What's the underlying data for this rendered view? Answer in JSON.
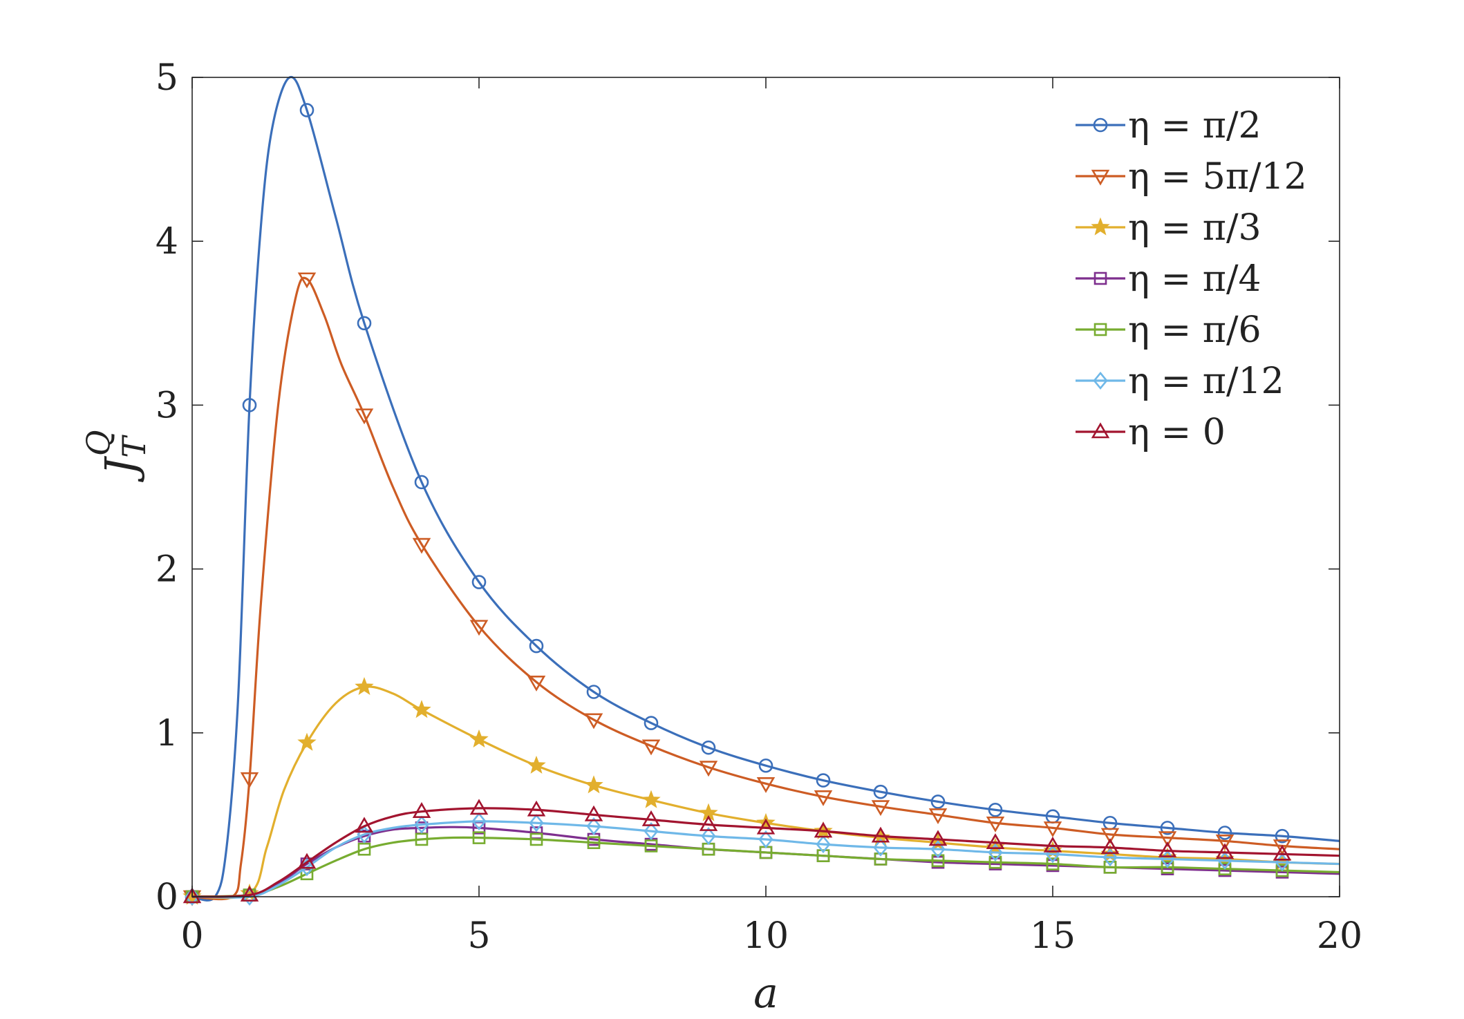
{
  "chart_data": {
    "type": "line",
    "xlabel": "a",
    "ylabel": "J_T^Q",
    "xlim": [
      0,
      20
    ],
    "ylim": [
      0,
      5
    ],
    "xticks": [
      0,
      5,
      10,
      15,
      20
    ],
    "yticks": [
      0,
      1,
      2,
      3,
      4,
      5
    ],
    "grid": false,
    "legend_position": "top-right",
    "x": [
      0,
      1,
      2,
      3,
      4,
      5,
      6,
      7,
      8,
      9,
      10,
      11,
      12,
      13,
      14,
      15,
      16,
      17,
      18,
      19
    ],
    "series": [
      {
        "name": "η = π/2",
        "color": "#3B6FBA",
        "marker": "circle",
        "values": [
          0,
          3.0,
          4.8,
          3.5,
          2.53,
          1.92,
          1.53,
          1.25,
          1.06,
          0.91,
          0.8,
          0.71,
          0.64,
          0.58,
          0.53,
          0.49,
          0.45,
          0.42,
          0.39,
          0.37
        ],
        "curve": [
          [
            0,
            0
          ],
          [
            0.4,
            0
          ],
          [
            0.6,
            0.3
          ],
          [
            0.8,
            1.2
          ],
          [
            1.0,
            3.0
          ],
          [
            1.2,
            4.1
          ],
          [
            1.4,
            4.7
          ],
          [
            1.7,
            5.0
          ],
          [
            2.0,
            4.8
          ],
          [
            2.5,
            4.15
          ],
          [
            3.0,
            3.5
          ],
          [
            4.0,
            2.53
          ],
          [
            5.0,
            1.92
          ],
          [
            6.0,
            1.53
          ],
          [
            7.0,
            1.25
          ],
          [
            8.0,
            1.06
          ],
          [
            9.0,
            0.91
          ],
          [
            10.0,
            0.8
          ],
          [
            11.0,
            0.71
          ],
          [
            12.0,
            0.64
          ],
          [
            13.0,
            0.58
          ],
          [
            14.0,
            0.53
          ],
          [
            15.0,
            0.49
          ],
          [
            16.0,
            0.45
          ],
          [
            17.0,
            0.42
          ],
          [
            18.0,
            0.39
          ],
          [
            19.0,
            0.37
          ],
          [
            20.0,
            0.34
          ]
        ]
      },
      {
        "name": "η = 5π/12",
        "color": "#CD5C24",
        "marker": "triangle-down",
        "values": [
          0,
          0.72,
          3.77,
          2.94,
          2.15,
          1.65,
          1.31,
          1.08,
          0.92,
          0.79,
          0.69,
          0.61,
          0.55,
          0.5,
          0.45,
          0.42,
          0.38,
          0.36,
          0.34,
          0.31
        ],
        "curve": [
          [
            0,
            0
          ],
          [
            0.7,
            0
          ],
          [
            0.85,
            0.2
          ],
          [
            1.0,
            0.72
          ],
          [
            1.2,
            1.8
          ],
          [
            1.5,
            3.0
          ],
          [
            1.8,
            3.65
          ],
          [
            2.0,
            3.77
          ],
          [
            2.3,
            3.55
          ],
          [
            2.6,
            3.25
          ],
          [
            3.0,
            2.94
          ],
          [
            3.5,
            2.5
          ],
          [
            4.0,
            2.15
          ],
          [
            5.0,
            1.65
          ],
          [
            6.0,
            1.31
          ],
          [
            7.0,
            1.08
          ],
          [
            8.0,
            0.92
          ],
          [
            9.0,
            0.79
          ],
          [
            10.0,
            0.69
          ],
          [
            11.0,
            0.61
          ],
          [
            12.0,
            0.55
          ],
          [
            13.0,
            0.5
          ],
          [
            14.0,
            0.45
          ],
          [
            15.0,
            0.42
          ],
          [
            16.0,
            0.38
          ],
          [
            17.0,
            0.36
          ],
          [
            18.0,
            0.34
          ],
          [
            19.0,
            0.31
          ],
          [
            20.0,
            0.29
          ]
        ]
      },
      {
        "name": "η = π/3",
        "color": "#E2AF2D",
        "marker": "star",
        "values": [
          0,
          0.02,
          0.94,
          1.28,
          1.14,
          0.96,
          0.8,
          0.68,
          0.59,
          0.51,
          0.45,
          0.4,
          0.36,
          0.33,
          0.3,
          0.28,
          0.26,
          0.24,
          0.23,
          0.21
        ],
        "curve": [
          [
            0,
            0
          ],
          [
            1.0,
            0.02
          ],
          [
            1.3,
            0.3
          ],
          [
            1.6,
            0.65
          ],
          [
            2.0,
            0.94
          ],
          [
            2.5,
            1.18
          ],
          [
            3.0,
            1.28
          ],
          [
            3.5,
            1.24
          ],
          [
            4.0,
            1.14
          ],
          [
            5.0,
            0.96
          ],
          [
            6.0,
            0.8
          ],
          [
            7.0,
            0.68
          ],
          [
            8.0,
            0.59
          ],
          [
            9.0,
            0.51
          ],
          [
            10.0,
            0.45
          ],
          [
            11.0,
            0.4
          ],
          [
            12.0,
            0.36
          ],
          [
            13.0,
            0.33
          ],
          [
            14.0,
            0.3
          ],
          [
            15.0,
            0.28
          ],
          [
            16.0,
            0.26
          ],
          [
            17.0,
            0.24
          ],
          [
            18.0,
            0.23
          ],
          [
            19.0,
            0.21
          ],
          [
            20.0,
            0.2
          ]
        ]
      },
      {
        "name": "η = π/4",
        "color": "#7E2F8E",
        "marker": "square",
        "values": [
          0,
          0.01,
          0.2,
          0.37,
          0.42,
          0.42,
          0.39,
          0.35,
          0.32,
          0.29,
          0.27,
          0.25,
          0.23,
          0.21,
          0.2,
          0.19,
          0.18,
          0.17,
          0.16,
          0.15
        ],
        "curve": [
          [
            0,
            0
          ],
          [
            1.0,
            0.01
          ],
          [
            1.5,
            0.08
          ],
          [
            2.0,
            0.2
          ],
          [
            2.5,
            0.3
          ],
          [
            3.0,
            0.37
          ],
          [
            3.5,
            0.41
          ],
          [
            4.0,
            0.42
          ],
          [
            4.5,
            0.425
          ],
          [
            5.0,
            0.42
          ],
          [
            6.0,
            0.39
          ],
          [
            7.0,
            0.35
          ],
          [
            8.0,
            0.32
          ],
          [
            9.0,
            0.29
          ],
          [
            10.0,
            0.27
          ],
          [
            11.0,
            0.25
          ],
          [
            12.0,
            0.23
          ],
          [
            13.0,
            0.21
          ],
          [
            14.0,
            0.2
          ],
          [
            15.0,
            0.19
          ],
          [
            16.0,
            0.18
          ],
          [
            17.0,
            0.17
          ],
          [
            18.0,
            0.16
          ],
          [
            19.0,
            0.15
          ],
          [
            20.0,
            0.14
          ]
        ]
      },
      {
        "name": "η = π/6",
        "color": "#77AC30",
        "marker": "square",
        "values": [
          0,
          0.01,
          0.14,
          0.29,
          0.35,
          0.36,
          0.35,
          0.33,
          0.31,
          0.29,
          0.27,
          0.25,
          0.23,
          0.22,
          0.21,
          0.2,
          0.18,
          0.18,
          0.17,
          0.16
        ],
        "curve": [
          [
            0,
            0
          ],
          [
            1.0,
            0.01
          ],
          [
            1.5,
            0.06
          ],
          [
            2.0,
            0.14
          ],
          [
            2.5,
            0.22
          ],
          [
            3.0,
            0.29
          ],
          [
            3.5,
            0.33
          ],
          [
            4.0,
            0.35
          ],
          [
            4.5,
            0.36
          ],
          [
            5.0,
            0.36
          ],
          [
            6.0,
            0.35
          ],
          [
            7.0,
            0.33
          ],
          [
            8.0,
            0.31
          ],
          [
            9.0,
            0.29
          ],
          [
            10.0,
            0.27
          ],
          [
            11.0,
            0.25
          ],
          [
            12.0,
            0.23
          ],
          [
            13.0,
            0.22
          ],
          [
            14.0,
            0.21
          ],
          [
            15.0,
            0.2
          ],
          [
            16.0,
            0.18
          ],
          [
            17.0,
            0.18
          ],
          [
            18.0,
            0.17
          ],
          [
            19.0,
            0.16
          ],
          [
            20.0,
            0.15
          ]
        ]
      },
      {
        "name": "η = π/12",
        "color": "#6FB8E8",
        "marker": "diamond",
        "values": [
          0,
          0.0,
          0.18,
          0.38,
          0.44,
          0.46,
          0.45,
          0.43,
          0.4,
          0.37,
          0.35,
          0.32,
          0.3,
          0.29,
          0.27,
          0.26,
          0.24,
          0.23,
          0.22,
          0.21
        ],
        "curve": [
          [
            0,
            0
          ],
          [
            1.0,
            0.0
          ],
          [
            1.5,
            0.07
          ],
          [
            2.0,
            0.18
          ],
          [
            2.5,
            0.3
          ],
          [
            3.0,
            0.38
          ],
          [
            3.5,
            0.42
          ],
          [
            4.0,
            0.44
          ],
          [
            5.0,
            0.46
          ],
          [
            6.0,
            0.45
          ],
          [
            7.0,
            0.43
          ],
          [
            8.0,
            0.4
          ],
          [
            9.0,
            0.37
          ],
          [
            10.0,
            0.35
          ],
          [
            11.0,
            0.32
          ],
          [
            12.0,
            0.3
          ],
          [
            13.0,
            0.29
          ],
          [
            14.0,
            0.27
          ],
          [
            15.0,
            0.26
          ],
          [
            16.0,
            0.24
          ],
          [
            17.0,
            0.23
          ],
          [
            18.0,
            0.22
          ],
          [
            19.0,
            0.21
          ],
          [
            20.0,
            0.2
          ]
        ]
      },
      {
        "name": "η = 0",
        "color": "#A2142F",
        "marker": "triangle-up",
        "values": [
          0,
          0.01,
          0.21,
          0.43,
          0.52,
          0.54,
          0.53,
          0.5,
          0.47,
          0.44,
          0.42,
          0.4,
          0.37,
          0.35,
          0.33,
          0.31,
          0.3,
          0.28,
          0.27,
          0.26
        ],
        "curve": [
          [
            0,
            0
          ],
          [
            1.0,
            0.01
          ],
          [
            1.5,
            0.09
          ],
          [
            2.0,
            0.21
          ],
          [
            2.5,
            0.33
          ],
          [
            3.0,
            0.43
          ],
          [
            3.5,
            0.49
          ],
          [
            4.0,
            0.52
          ],
          [
            5.0,
            0.54
          ],
          [
            6.0,
            0.53
          ],
          [
            7.0,
            0.5
          ],
          [
            8.0,
            0.47
          ],
          [
            9.0,
            0.44
          ],
          [
            10.0,
            0.42
          ],
          [
            11.0,
            0.4
          ],
          [
            12.0,
            0.37
          ],
          [
            13.0,
            0.35
          ],
          [
            14.0,
            0.33
          ],
          [
            15.0,
            0.31
          ],
          [
            16.0,
            0.3
          ],
          [
            17.0,
            0.28
          ],
          [
            18.0,
            0.27
          ],
          [
            19.0,
            0.26
          ],
          [
            20.0,
            0.25
          ]
        ]
      }
    ]
  }
}
